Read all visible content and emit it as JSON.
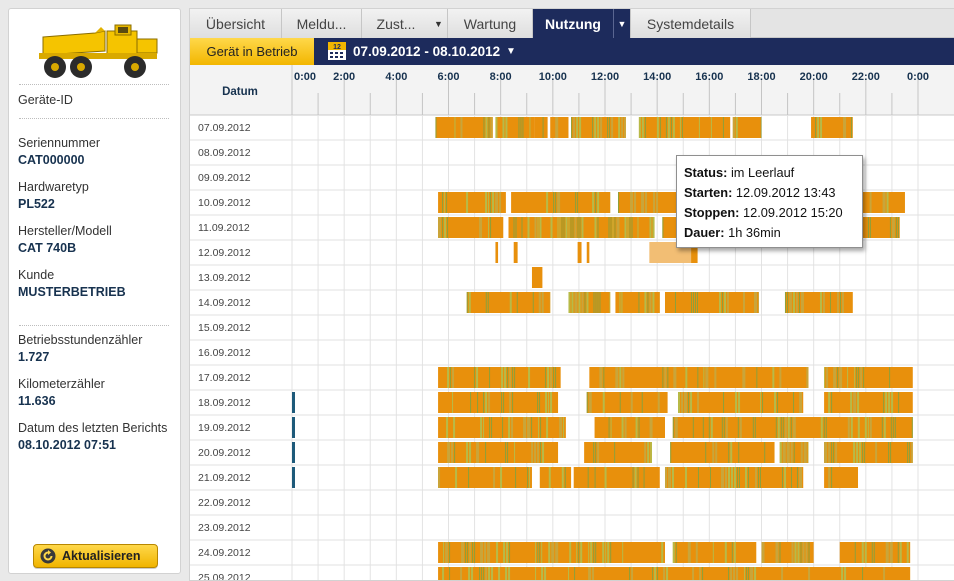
{
  "device": {
    "id_label": "Geräte-ID",
    "fields": [
      {
        "label": "Seriennummer",
        "value": "CAT000000"
      },
      {
        "label": "Hardwaretyp",
        "value": "PL522"
      },
      {
        "label": "Hersteller/Modell",
        "value": "CAT 740B"
      },
      {
        "label": "Kunde",
        "value": "MUSTERBETRIEB"
      }
    ],
    "counters": [
      {
        "label": "Betriebsstundenzähler",
        "value": "1.727"
      },
      {
        "label": "Kilometerzähler",
        "value": "11.636"
      },
      {
        "label": "Datum des letzten Berichts",
        "value": "08.10.2012 07:51"
      }
    ],
    "refresh_label": "Aktualisieren"
  },
  "tabs": [
    "Übersicht",
    "Meldu...",
    "Zust...",
    "Wartung",
    "Nutzung",
    "Systemdetails"
  ],
  "active_tab": "Nutzung",
  "toolbar": {
    "status_button": "Gerät in Betrieb",
    "calendar_day": "12",
    "date_range": "07.09.2012 - 08.10.2012"
  },
  "tooltip": {
    "status_label": "Status:",
    "status_value": "im Leerlauf",
    "start_label": "Starten:",
    "start_value": "12.09.2012 13:43",
    "stop_label": "Stoppen:",
    "stop_value": "12.09.2012 15:20",
    "duration_label": "Dauer:",
    "duration_value": "1h 36min"
  },
  "colors": {
    "active": "#e8900c",
    "idle": "#a3ad3a",
    "selected": "#f2be74",
    "marker": "#1e5a7a"
  },
  "chart_data": {
    "type": "gantt",
    "column_header": "Datum",
    "x_axis_ticks": [
      "0:00",
      "2:00",
      "4:00",
      "6:00",
      "8:00",
      "10:00",
      "12:00",
      "14:00",
      "16:00",
      "18:00",
      "20:00",
      "22:00",
      "0:00"
    ],
    "rows": [
      {
        "date": "07.09.2012",
        "blocks": [
          [
            5.5,
            7.7,
            "mix"
          ],
          [
            7.8,
            9.3,
            "mix"
          ],
          [
            9.3,
            9.8,
            "mix"
          ],
          [
            9.9,
            10.6,
            "mix"
          ],
          [
            10.7,
            12.8,
            "mix"
          ],
          [
            13.3,
            16.8,
            "mix"
          ],
          [
            16.9,
            18.0,
            "mix"
          ],
          [
            19.9,
            21.5,
            "mix"
          ]
        ]
      },
      {
        "date": "08.09.2012",
        "blocks": []
      },
      {
        "date": "09.09.2012",
        "blocks": []
      },
      {
        "date": "10.09.2012",
        "blocks": [
          [
            5.6,
            8.2,
            "mix"
          ],
          [
            8.4,
            12.2,
            "mix"
          ],
          [
            12.5,
            15.0,
            "mix"
          ],
          [
            21.3,
            23.5,
            "mix"
          ]
        ]
      },
      {
        "date": "11.09.2012",
        "blocks": [
          [
            5.6,
            8.1,
            "mix"
          ],
          [
            8.3,
            13.9,
            "mix"
          ],
          [
            14.2,
            15.5,
            "mix"
          ],
          [
            15.7,
            19.2,
            "mix"
          ],
          [
            19.4,
            20.5,
            "mix"
          ],
          [
            20.7,
            23.3,
            "mix"
          ]
        ]
      },
      {
        "date": "12.09.2012",
        "blocks": [
          [
            7.8,
            7.9,
            "active"
          ],
          [
            8.5,
            8.65,
            "active"
          ],
          [
            10.95,
            11.1,
            "active"
          ],
          [
            11.3,
            11.4,
            "active"
          ],
          [
            13.7,
            15.3,
            "selected"
          ],
          [
            15.3,
            15.55,
            "active"
          ]
        ]
      },
      {
        "date": "13.09.2012",
        "blocks": [
          [
            9.2,
            9.6,
            "active"
          ]
        ]
      },
      {
        "date": "14.09.2012",
        "blocks": [
          [
            6.7,
            9.9,
            "mix"
          ],
          [
            10.6,
            12.2,
            "mix"
          ],
          [
            12.4,
            14.1,
            "mix"
          ],
          [
            14.3,
            17.9,
            "mix"
          ],
          [
            18.9,
            21.5,
            "mix"
          ]
        ]
      },
      {
        "date": "15.09.2012",
        "blocks": []
      },
      {
        "date": "16.09.2012",
        "blocks": []
      },
      {
        "date": "17.09.2012",
        "blocks": [
          [
            5.6,
            10.3,
            "mix"
          ],
          [
            11.4,
            19.8,
            "mix"
          ],
          [
            20.4,
            23.8,
            "mix"
          ]
        ]
      },
      {
        "date": "18.09.2012",
        "blocks": [
          [
            0.0,
            0.1,
            "marker"
          ],
          [
            5.6,
            10.2,
            "mix"
          ],
          [
            11.3,
            14.4,
            "mix"
          ],
          [
            14.8,
            19.6,
            "mix"
          ],
          [
            20.4,
            23.8,
            "mix"
          ]
        ]
      },
      {
        "date": "19.09.2012",
        "blocks": [
          [
            0.0,
            0.1,
            "marker"
          ],
          [
            5.6,
            10.5,
            "mix"
          ],
          [
            11.6,
            14.3,
            "mix"
          ],
          [
            14.6,
            23.8,
            "mix"
          ]
        ]
      },
      {
        "date": "20.09.2012",
        "blocks": [
          [
            0.0,
            0.1,
            "marker"
          ],
          [
            5.6,
            10.2,
            "mix"
          ],
          [
            11.2,
            13.8,
            "mix"
          ],
          [
            14.5,
            18.5,
            "mix"
          ],
          [
            18.7,
            19.8,
            "mix"
          ],
          [
            20.4,
            23.8,
            "mix"
          ]
        ]
      },
      {
        "date": "21.09.2012",
        "blocks": [
          [
            0.0,
            0.1,
            "marker"
          ],
          [
            5.6,
            9.2,
            "mix"
          ],
          [
            9.5,
            10.7,
            "mix"
          ],
          [
            10.8,
            11.6,
            "mix"
          ],
          [
            11.6,
            14.1,
            "mix"
          ],
          [
            14.3,
            19.6,
            "mix"
          ],
          [
            20.4,
            21.7,
            "mix"
          ]
        ]
      },
      {
        "date": "22.09.2012",
        "blocks": []
      },
      {
        "date": "23.09.2012",
        "blocks": []
      },
      {
        "date": "24.09.2012",
        "blocks": [
          [
            5.6,
            9.4,
            "mix"
          ],
          [
            9.4,
            14.3,
            "mix"
          ],
          [
            14.6,
            17.8,
            "mix"
          ],
          [
            18.0,
            20.0,
            "mix"
          ],
          [
            21.0,
            23.7,
            "mix"
          ]
        ]
      },
      {
        "date": "25.09.2012",
        "blocks": [
          [
            5.6,
            23.7,
            "mix"
          ]
        ]
      }
    ]
  }
}
